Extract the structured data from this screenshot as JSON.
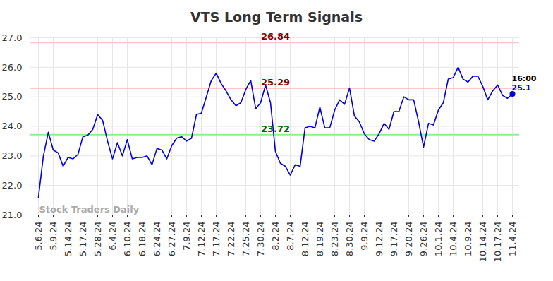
{
  "chart_data": {
    "type": "line",
    "title": "VTS Long Term Signals",
    "categories": [
      "5.6.24",
      null,
      null,
      "5.9.24",
      null,
      null,
      "5.14.24",
      null,
      null,
      "5.17.24",
      null,
      null,
      "5.28.24",
      null,
      null,
      "6.4.24",
      null,
      null,
      "6.10.24",
      null,
      null,
      "6.18.24",
      null,
      null,
      "6.24.24",
      null,
      null,
      "6.27.24",
      null,
      null,
      "7.9.24",
      null,
      null,
      "7.12.24",
      null,
      null,
      "7.17.24",
      null,
      null,
      "7.22.24",
      null,
      null,
      "7.25.24",
      null,
      null,
      "7.30.24",
      null,
      null,
      "8.2.24",
      null,
      null,
      "8.7.24",
      null,
      null,
      "8.12.24",
      null,
      null,
      "8.19.24",
      null,
      null,
      "8.23.24",
      null,
      null,
      "8.30.24",
      null,
      null,
      "9.9.24",
      null,
      null,
      "9.12.24",
      null,
      null,
      "9.17.24",
      null,
      null,
      "9.20.24",
      null,
      null,
      "9.26.24",
      null,
      null,
      "10.1.24",
      null,
      null,
      "10.4.24",
      null,
      null,
      "10.9.24",
      null,
      null,
      "10.14.24",
      null,
      null,
      "10.17.24",
      null,
      null,
      "11.4.24"
    ],
    "values": [
      21.6,
      23.0,
      23.8,
      23.2,
      23.1,
      22.65,
      22.95,
      22.9,
      23.05,
      23.65,
      23.7,
      23.9,
      24.4,
      24.2,
      23.5,
      22.9,
      23.45,
      23.0,
      23.55,
      22.9,
      22.95,
      22.95,
      23.0,
      22.7,
      23.25,
      23.2,
      22.9,
      23.35,
      23.6,
      23.65,
      23.5,
      23.6,
      24.4,
      24.45,
      25.0,
      25.55,
      25.8,
      25.45,
      25.2,
      24.9,
      24.7,
      24.8,
      25.25,
      25.55,
      24.6,
      24.8,
      25.4,
      24.8,
      23.15,
      22.75,
      22.65,
      22.35,
      22.7,
      22.65,
      23.95,
      24.0,
      23.95,
      24.65,
      23.95,
      23.95,
      24.55,
      24.9,
      24.75,
      25.3,
      24.35,
      24.15,
      23.75,
      23.55,
      23.5,
      23.75,
      24.1,
      23.9,
      24.5,
      24.5,
      25.0,
      24.9,
      24.9,
      24.15,
      23.3,
      24.1,
      24.05,
      24.55,
      24.8,
      25.6,
      25.65,
      26.0,
      25.6,
      25.5,
      25.7,
      25.7,
      25.35,
      24.9,
      25.2,
      25.4,
      25.05,
      24.95,
      25.1
    ],
    "color": "#0000dd",
    "ylim": [
      21,
      27
    ],
    "yticks": [
      21,
      22,
      23,
      24,
      25,
      26,
      27
    ],
    "grid": true,
    "levels": [
      {
        "value": 26.84,
        "color": "#ffc8c8",
        "label_color": "#800000"
      },
      {
        "value": 25.29,
        "color": "#ffc8c8",
        "label_color": "#800000"
      },
      {
        "value": 23.72,
        "color": "#90ee90",
        "label_color": "#006400"
      }
    ],
    "last_point": {
      "label": "16:00",
      "value_label": "25.1",
      "color": "#0000dd"
    },
    "watermark": "Stock Traders Daily"
  }
}
